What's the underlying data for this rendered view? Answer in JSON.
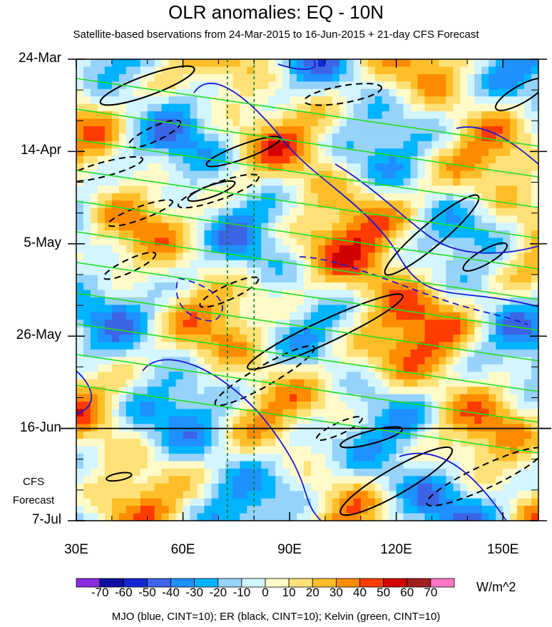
{
  "chart_data": {
    "type": "heatmap",
    "title": "OLR anomalies: EQ - 10N",
    "subtitle": "Satellite-based bservations from 24-Mar-2015 to 16-Jun-2015 + 21-day CFS Forecast",
    "x_ticks": [
      "30E",
      "60E",
      "90E",
      "120E",
      "150E"
    ],
    "x_tick_values": [
      30,
      60,
      90,
      120,
      150
    ],
    "xlim": [
      30,
      160
    ],
    "y_ticks": [
      "24-Mar",
      "14-Apr",
      "5-May",
      "26-May",
      "16-Jun",
      "7-Jul"
    ],
    "y_tick_days": [
      0,
      21,
      42,
      63,
      84,
      105
    ],
    "ylim_days": [
      0,
      105
    ],
    "observation_end": "16-Jun",
    "forecast_label": [
      "CFS",
      "Forecast"
    ],
    "reference_longitudes": [
      72.5,
      80
    ],
    "colorbar": {
      "levels": [
        "-70",
        "-60",
        "-50",
        "-40",
        "-30",
        "-20",
        "-10",
        "0",
        "10",
        "20",
        "30",
        "40",
        "50",
        "60",
        "70"
      ],
      "colors": [
        "#8a2be2",
        "#1010a0",
        "#1428d2",
        "#3c64e6",
        "#1e90ff",
        "#00b4ff",
        "#96d2fa",
        "#d2f5ff",
        "#fffac8",
        "#ffe178",
        "#ffbe28",
        "#ff8c00",
        "#ff3c00",
        "#d20000",
        "#a01e1e",
        "#ff78c8"
      ],
      "units": "W/m^2"
    },
    "overlays": {
      "MJO": "blue",
      "ER": "black",
      "Kelvin": "green"
    },
    "footer": "MJO (blue, CINT=10); ER (black, CINT=10); Kelvin (green, CINT=10)"
  }
}
